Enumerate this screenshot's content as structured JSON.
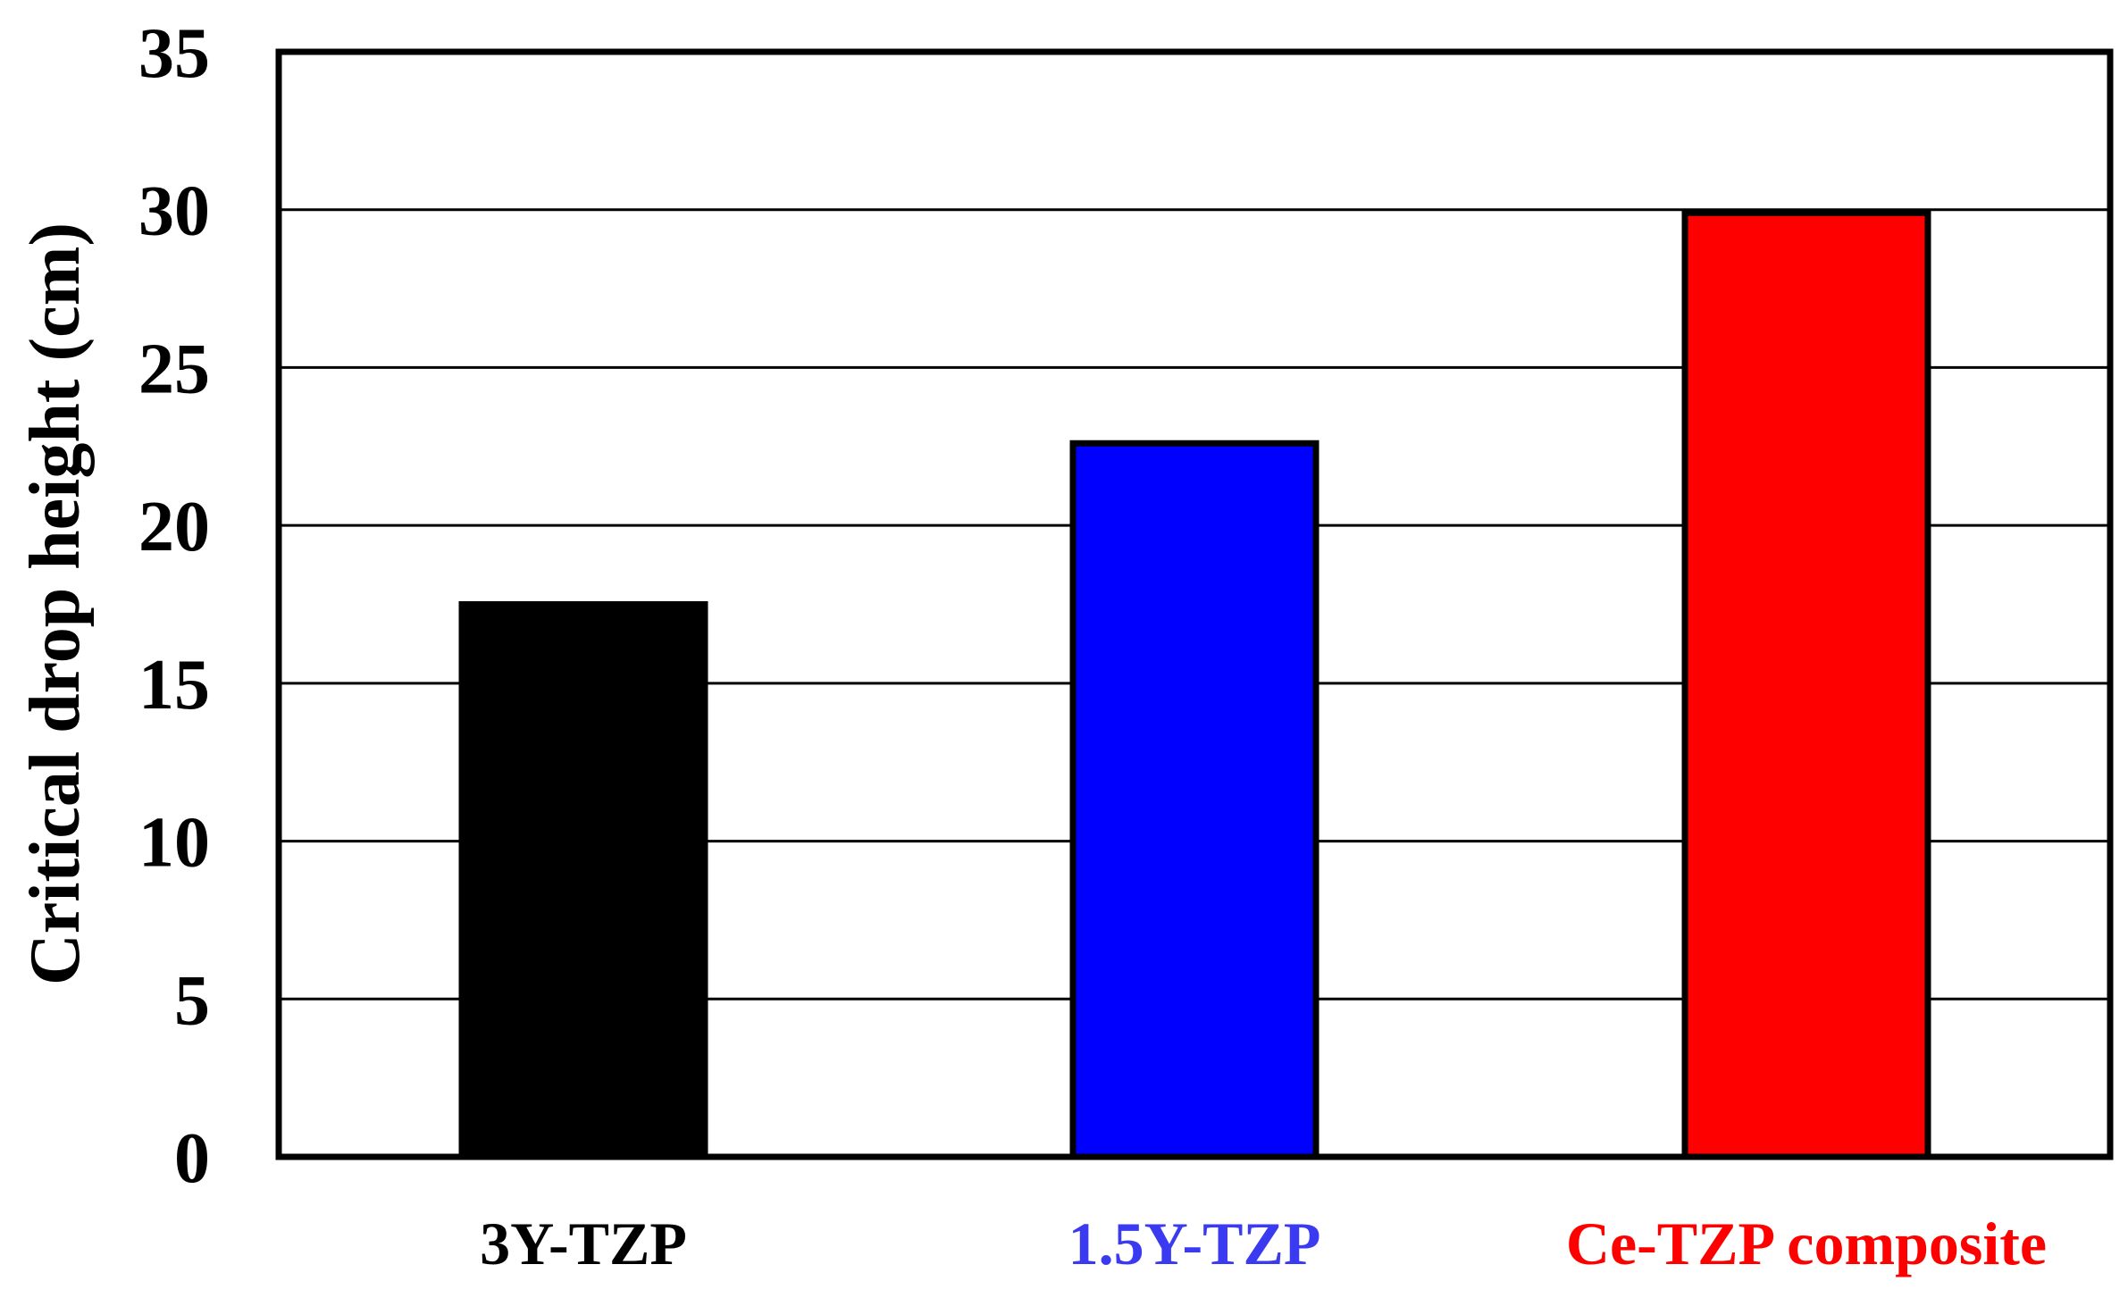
{
  "chart_data": {
    "type": "bar",
    "categories": [
      "3Y-TZP",
      "1.5Y-TZP",
      "Ce-TZP composite"
    ],
    "values": [
      17.5,
      22.6,
      29.9
    ],
    "colors": [
      "#000000",
      "#0000ff",
      "#ff0000"
    ],
    "label_colors": [
      "#000000",
      "#3a3af0",
      "#ff0000"
    ],
    "ylabel": "Critical drop height (cm)",
    "ylim": [
      0,
      35
    ],
    "yticks": [
      0,
      5,
      10,
      15,
      20,
      25,
      30,
      35
    ],
    "grid": true
  }
}
